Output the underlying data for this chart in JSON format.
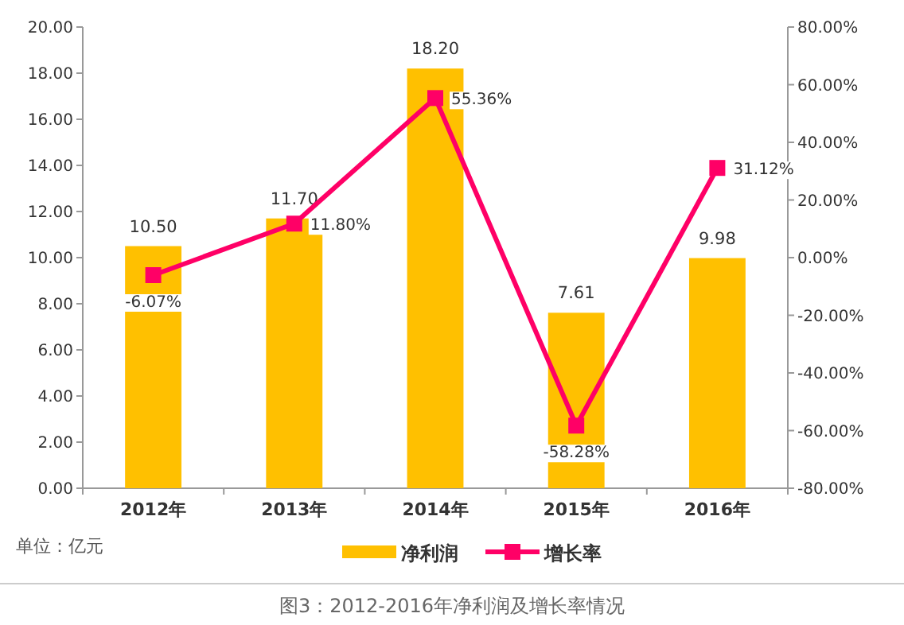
{
  "chart_data": {
    "type": "bar",
    "title": "图3：2012-2016年净利润及增长率情况",
    "annotations": [
      "单位：亿元"
    ],
    "categories": [
      "2012年",
      "2013年",
      "2014年",
      "2015年",
      "2016年"
    ],
    "series": [
      {
        "name": "净利润",
        "color": "#ffc000",
        "values": [
          10.5,
          11.7,
          18.2,
          7.61,
          9.98
        ],
        "value_labels": [
          "10.50",
          "11.70",
          "18.20",
          "7.61",
          "9.98"
        ]
      },
      {
        "name": "增长率",
        "type": "line",
        "axis": "y2",
        "color": "#ff0066",
        "values": [
          -6.07,
          11.8,
          55.36,
          -58.28,
          31.12
        ],
        "value_labels": [
          "-6.07%",
          "11.80%",
          "55.36%",
          "-58.28%",
          "31.12%"
        ]
      }
    ],
    "ylim": [
      0,
      20
    ],
    "yticks": [
      {
        "value": 0,
        "label": "0.00"
      },
      {
        "value": 2,
        "label": "2.00"
      },
      {
        "value": 4,
        "label": "4.00"
      },
      {
        "value": 6,
        "label": "6.00"
      },
      {
        "value": 8,
        "label": "8.00"
      },
      {
        "value": 10,
        "label": "10.00"
      },
      {
        "value": 12,
        "label": "12.00"
      },
      {
        "value": 14,
        "label": "14.00"
      },
      {
        "value": 16,
        "label": "16.00"
      },
      {
        "value": 18,
        "label": "18.00"
      },
      {
        "value": 20,
        "label": "20.00"
      }
    ],
    "y2lim": [
      -80,
      80
    ],
    "y2ticks": [
      {
        "value": -80,
        "label": "-80.00%"
      },
      {
        "value": -60,
        "label": "-60.00%"
      },
      {
        "value": -40,
        "label": "-40.00%"
      },
      {
        "value": -20,
        "label": "-20.00%"
      },
      {
        "value": 0,
        "label": "0.00%"
      },
      {
        "value": 20,
        "label": "20.00%"
      },
      {
        "value": 40,
        "label": "40.00%"
      },
      {
        "value": 60,
        "label": "60.00%"
      },
      {
        "value": 80,
        "label": "80.00%"
      }
    ],
    "marker": "square",
    "legend": "bottom",
    "grid": false
  }
}
